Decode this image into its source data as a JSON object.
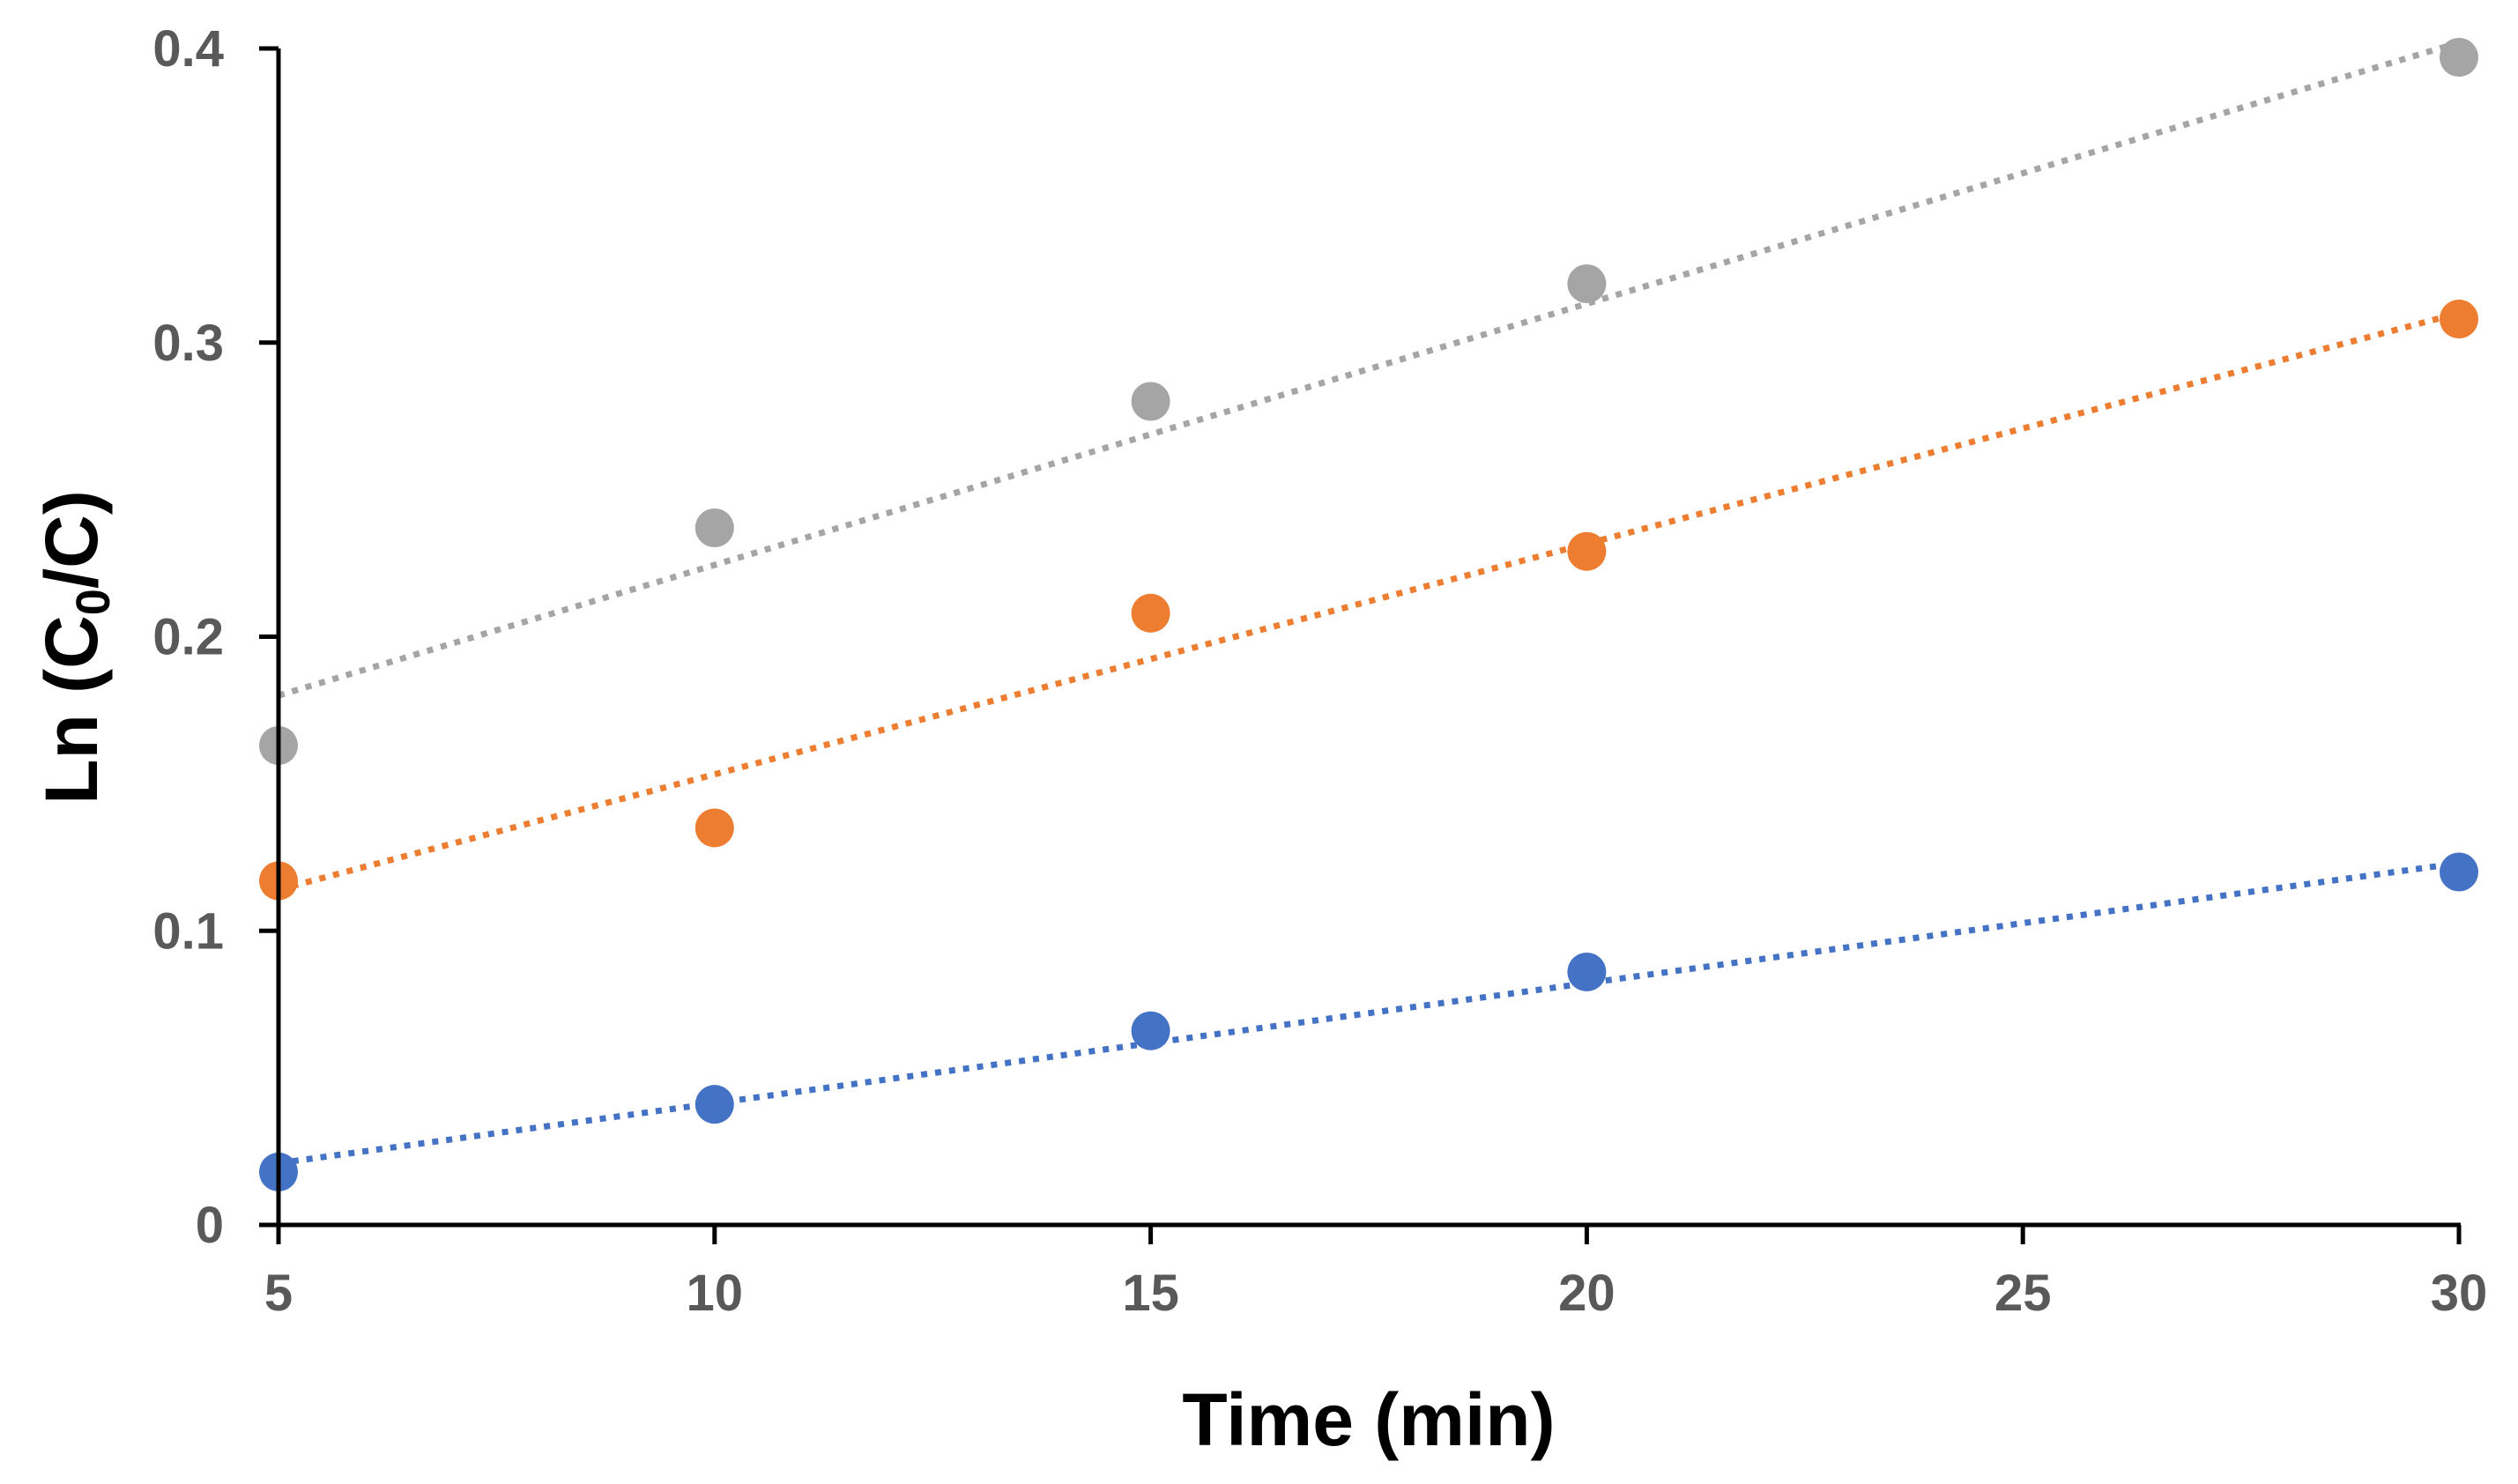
{
  "chart_data": {
    "type": "scatter",
    "title": "",
    "xlabel": "Time (min)",
    "ylabel": {
      "prefix": "Ln (C",
      "subscript": "0",
      "suffix": "/C)"
    },
    "xlim": [
      5,
      30
    ],
    "ylim": [
      0,
      0.4
    ],
    "xticks": [
      5,
      10,
      15,
      20,
      25,
      30
    ],
    "yticks": [
      0,
      0.1,
      0.2,
      0.3,
      0.4
    ],
    "xtick_labels": [
      "5",
      "10",
      "15",
      "20",
      "25",
      "30"
    ],
    "ytick_labels": [
      "0",
      "0.1",
      "0.2",
      "0.3",
      "0.4"
    ],
    "grid": false,
    "legend": "none",
    "series": [
      {
        "name": "series-blue",
        "color": "#4472C4",
        "x": [
          5,
          10,
          15,
          20,
          30
        ],
        "y": [
          0.018,
          0.041,
          0.066,
          0.086,
          0.12
        ],
        "trendline": {
          "style": "dotted",
          "x": [
            5,
            30
          ],
          "y": [
            0.021,
            0.123
          ]
        }
      },
      {
        "name": "series-orange",
        "color": "#ED7D31",
        "x": [
          5,
          10,
          15,
          20,
          30
        ],
        "y": [
          0.117,
          0.135,
          0.208,
          0.229,
          0.308
        ],
        "trendline": {
          "style": "dotted",
          "x": [
            5,
            30
          ],
          "y": [
            0.114,
            0.31
          ]
        }
      },
      {
        "name": "series-gray",
        "color": "#A5A5A5",
        "x": [
          5,
          10,
          15,
          20,
          30
        ],
        "y": [
          0.163,
          0.237,
          0.28,
          0.32,
          0.397
        ],
        "trendline": {
          "style": "dotted",
          "x": [
            5,
            30
          ],
          "y": [
            0.18,
            0.402
          ]
        }
      }
    ]
  }
}
